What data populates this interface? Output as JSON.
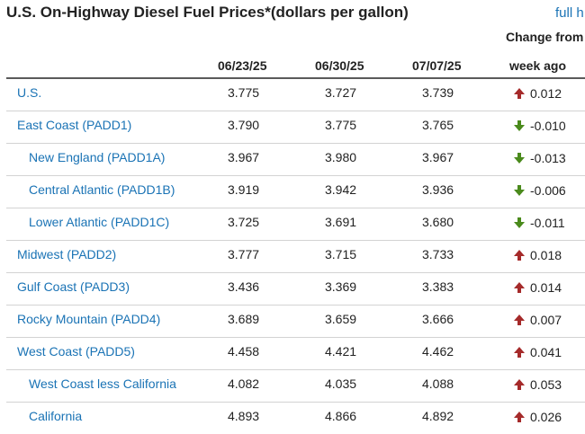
{
  "title": "U.S. On-Highway Diesel Fuel Prices*(dollars per gallon)",
  "full_history_link": "full h",
  "headers": {
    "dates": [
      "06/23/25",
      "06/30/25",
      "07/07/25"
    ],
    "change_line1": "Change from",
    "change_line2": "week ago"
  },
  "colors": {
    "link": "#1a73b5",
    "up": "#a52a2a",
    "down": "#4a8a1c"
  },
  "rows": [
    {
      "region": "U.S.",
      "indent": false,
      "values": [
        "3.775",
        "3.727",
        "3.739"
      ],
      "change": "0.012",
      "direction": "up"
    },
    {
      "region": "East Coast (PADD1)",
      "indent": false,
      "values": [
        "3.790",
        "3.775",
        "3.765"
      ],
      "change": "-0.010",
      "direction": "down"
    },
    {
      "region": "New England (PADD1A)",
      "indent": true,
      "values": [
        "3.967",
        "3.980",
        "3.967"
      ],
      "change": "-0.013",
      "direction": "down"
    },
    {
      "region": "Central Atlantic (PADD1B)",
      "indent": true,
      "values": [
        "3.919",
        "3.942",
        "3.936"
      ],
      "change": "-0.006",
      "direction": "down"
    },
    {
      "region": "Lower Atlantic (PADD1C)",
      "indent": true,
      "values": [
        "3.725",
        "3.691",
        "3.680"
      ],
      "change": "-0.011",
      "direction": "down"
    },
    {
      "region": "Midwest (PADD2)",
      "indent": false,
      "values": [
        "3.777",
        "3.715",
        "3.733"
      ],
      "change": "0.018",
      "direction": "up"
    },
    {
      "region": "Gulf Coast (PADD3)",
      "indent": false,
      "values": [
        "3.436",
        "3.369",
        "3.383"
      ],
      "change": "0.014",
      "direction": "up"
    },
    {
      "region": "Rocky Mountain (PADD4)",
      "indent": false,
      "values": [
        "3.689",
        "3.659",
        "3.666"
      ],
      "change": "0.007",
      "direction": "up"
    },
    {
      "region": "West Coast (PADD5)",
      "indent": false,
      "values": [
        "4.458",
        "4.421",
        "4.462"
      ],
      "change": "0.041",
      "direction": "up"
    },
    {
      "region": "West Coast less California",
      "indent": true,
      "values": [
        "4.082",
        "4.035",
        "4.088"
      ],
      "change": "0.053",
      "direction": "up"
    },
    {
      "region": "California",
      "indent": true,
      "values": [
        "4.893",
        "4.866",
        "4.892"
      ],
      "change": "0.026",
      "direction": "up"
    }
  ]
}
